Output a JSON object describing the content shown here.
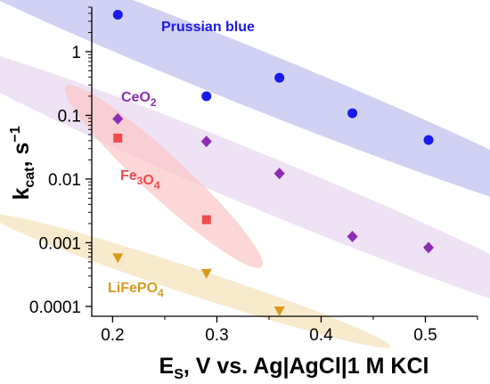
{
  "chart_data": {
    "type": "scatter",
    "xlabel": {
      "main": "E",
      "sub": "S",
      "rest": ", V vs. Ag|AgCl|1 M KCl"
    },
    "ylabel": {
      "main": "k",
      "sub": "cat",
      "rest": ", s",
      "sup": "−1"
    },
    "xlim": [
      0.18,
      0.55
    ],
    "ylim": [
      7e-05,
      5
    ],
    "yscale": "log",
    "xticks": [
      0.2,
      0.3,
      0.4,
      0.5
    ],
    "xtick_labels": [
      "0.2",
      "0.3",
      "0.4",
      "0.5"
    ],
    "yticks": [
      0.0001,
      0.001,
      0.01,
      0.1,
      1
    ],
    "ytick_labels": [
      "0.0001",
      "0.001",
      "0.01",
      "0.1",
      "1"
    ],
    "grid": false,
    "series": [
      {
        "name": "Prussian blue",
        "label_parts": [
          {
            "t": "Prussian blue"
          }
        ],
        "color": "#1a1af0",
        "marker": "circle",
        "points": [
          [
            0.205,
            3.8
          ],
          [
            0.29,
            0.2
          ],
          [
            0.36,
            0.39
          ],
          [
            0.43,
            0.108
          ],
          [
            0.503,
            0.041
          ]
        ]
      },
      {
        "name": "CeO2",
        "label_parts": [
          {
            "t": "CeO"
          },
          {
            "t": "2",
            "sub": true
          }
        ],
        "color": "#8a2fb5",
        "marker": "diamond",
        "points": [
          [
            0.205,
            0.088
          ],
          [
            0.29,
            0.039
          ],
          [
            0.36,
            0.0122
          ],
          [
            0.43,
            0.00125
          ],
          [
            0.503,
            0.00084
          ]
        ]
      },
      {
        "name": "Fe3O4",
        "label_parts": [
          {
            "t": "Fe"
          },
          {
            "t": "3",
            "sub": true
          },
          {
            "t": "O"
          },
          {
            "t": "4",
            "sub": true
          }
        ],
        "color": "#f04a4a",
        "marker": "square",
        "points": [
          [
            0.205,
            0.044
          ],
          [
            0.29,
            0.0023
          ]
        ]
      },
      {
        "name": "LiFePO4",
        "label_parts": [
          {
            "t": "LiFePO"
          },
          {
            "t": "4",
            "sub": true
          }
        ],
        "color": "#d99a1c",
        "marker": "triangle-down",
        "points": [
          [
            0.205,
            0.00058
          ],
          [
            0.29,
            0.00033
          ],
          [
            0.36,
            8.5e-05
          ]
        ]
      }
    ],
    "ellipses": [
      {
        "series": "Prussian blue",
        "fill": "#b9b9ee",
        "opacity": 0.65,
        "cx": 0.32,
        "cy": 0.48,
        "rx": 0.24,
        "ry": 0.45,
        "angle": 0.8
      },
      {
        "series": "CeO2",
        "fill": "#e8d5ef",
        "opacity": 0.7,
        "cx": 0.35,
        "cy": 0.008,
        "rx": 0.2,
        "ry": 0.42,
        "angle": 0.45
      },
      {
        "series": "Fe3O4",
        "fill": "#f9c6c6",
        "opacity": 0.7,
        "cx": 0.249,
        "cy": 0.011,
        "rx": 0.07,
        "ry": 0.33,
        "angle": 0.35
      },
      {
        "series": "LiFePO4",
        "fill": "#f5deb0",
        "opacity": 0.65,
        "cx": 0.275,
        "cy": 0.00025,
        "rx": 0.12,
        "ry": 0.21,
        "angle": 0.2
      }
    ]
  }
}
